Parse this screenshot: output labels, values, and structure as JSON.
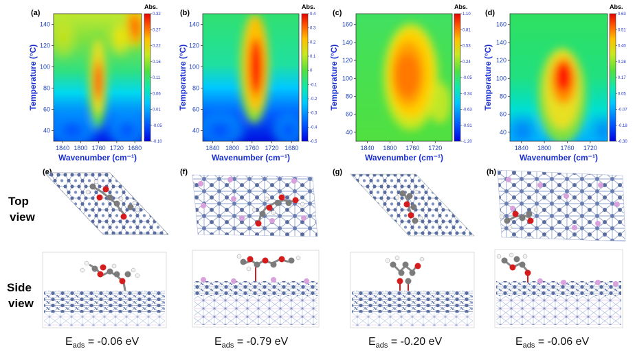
{
  "chart_data": [
    {
      "panel": "(a)",
      "type": "heatmap",
      "title": "",
      "xlabel": "Wavenumber (cm⁻¹)",
      "ylabel": "Temperature (°C)",
      "x_ticks": [
        "1840",
        "1800",
        "1760",
        "1720",
        "1680"
      ],
      "xlim": [
        1860,
        1665
      ],
      "y_ticks": [
        "40",
        "60",
        "80",
        "100",
        "120",
        "140"
      ],
      "ylim": [
        30,
        150
      ],
      "colorbar_title": "Abs.",
      "colorbar_ticks": [
        "0.32",
        "0.27",
        "0.22",
        "0.16",
        "0.11",
        "0.06",
        "0.01",
        "-0.05",
        "-0.10"
      ],
      "zlim": [
        -0.1,
        0.32
      ],
      "features": [
        {
          "peak_wavenumber": 1766,
          "peak_temperature": 95,
          "level": 0.3
        },
        {
          "peak_wavenumber": 1680,
          "peak_temperature": 140,
          "level": 0.28
        }
      ]
    },
    {
      "panel": "(b)",
      "type": "heatmap",
      "title": "",
      "xlabel": "Wavenumber (cm⁻¹)",
      "ylabel": "Temperature (°C)",
      "x_ticks": [
        "1840",
        "1800",
        "1760",
        "1720",
        "1680"
      ],
      "xlim": [
        1860,
        1665
      ],
      "y_ticks": [
        "40",
        "60",
        "80",
        "100",
        "120",
        "140"
      ],
      "ylim": [
        30,
        150
      ],
      "colorbar_title": "Abs.",
      "colorbar_ticks": [
        "0.4",
        "0.3",
        "0.2",
        "0.1",
        "0",
        "-0.1",
        "-0.2",
        "-0.3",
        "-0.4",
        "-0.5"
      ],
      "zlim": [
        -0.5,
        0.4
      ],
      "features": [
        {
          "peak_wavenumber": 1752,
          "peak_temperature": 100,
          "level": 0.4
        }
      ]
    },
    {
      "panel": "(c)",
      "type": "heatmap",
      "title": "",
      "xlabel": "Wavenumber (cm⁻¹)",
      "ylabel": "Temperature (°C)",
      "x_ticks": [
        "1840",
        "1800",
        "1760",
        "1720"
      ],
      "xlim": [
        1860,
        1690
      ],
      "y_ticks": [
        "40",
        "60",
        "80",
        "100",
        "120",
        "140",
        "160"
      ],
      "ylim": [
        30,
        172
      ],
      "colorbar_title": "Abs.",
      "colorbar_ticks": [
        "1.10",
        "0.81",
        "0.53",
        "0.24",
        "-0.05",
        "-0.34",
        "-0.63",
        "-0.91",
        "-1.20"
      ],
      "zlim": [
        -1.2,
        1.1
      ],
      "features": [
        {
          "peak_wavenumber": 1765,
          "peak_temperature": 110,
          "level": 0.9
        }
      ]
    },
    {
      "panel": "(d)",
      "type": "heatmap",
      "title": "",
      "xlabel": "Wavenumber (cm⁻¹)",
      "ylabel": "Temperature (°C)",
      "x_ticks": [
        "1840",
        "1800",
        "1760",
        "1720"
      ],
      "xlim": [
        1860,
        1690
      ],
      "y_ticks": [
        "40",
        "60",
        "80",
        "100",
        "120",
        "140",
        "160"
      ],
      "ylim": [
        30,
        172
      ],
      "colorbar_title": "Abs.",
      "colorbar_ticks": [
        "0.63",
        "0.51",
        "0.40",
        "0.28",
        "0.17",
        "0.05",
        "-0.07",
        "-0.18",
        "-0.30"
      ],
      "zlim": [
        -0.3,
        0.63
      ],
      "features": [
        {
          "peak_wavenumber": 1768,
          "peak_temperature": 105,
          "level": 0.63
        }
      ]
    }
  ],
  "structures": {
    "panels": [
      "(e)",
      "(f)",
      "(g)",
      "(h)"
    ],
    "row_labels": [
      {
        "l1": "Top",
        "l2": "view"
      },
      {
        "l1": "Side",
        "l2": "view"
      }
    ],
    "colors": {
      "surface": "#6f82b0",
      "atom_dark": "#4d5f92",
      "bond": "#8ea0cc",
      "dopant": "#d9a2dc",
      "carbon": "#7b7b7b",
      "oxygen": "#d41c1c",
      "hydrogen": "#f2f2f2"
    }
  },
  "adsorption": [
    {
      "prefix": "E",
      "sub": "ads",
      "value": " = -0.06 eV"
    },
    {
      "prefix": "E",
      "sub": "ads",
      "value": " = -0.79 eV"
    },
    {
      "prefix": "E",
      "sub": "ads",
      "value": " = -0.20 eV"
    },
    {
      "prefix": "E",
      "sub": "ads",
      "value": " = -0.06 eV"
    }
  ]
}
